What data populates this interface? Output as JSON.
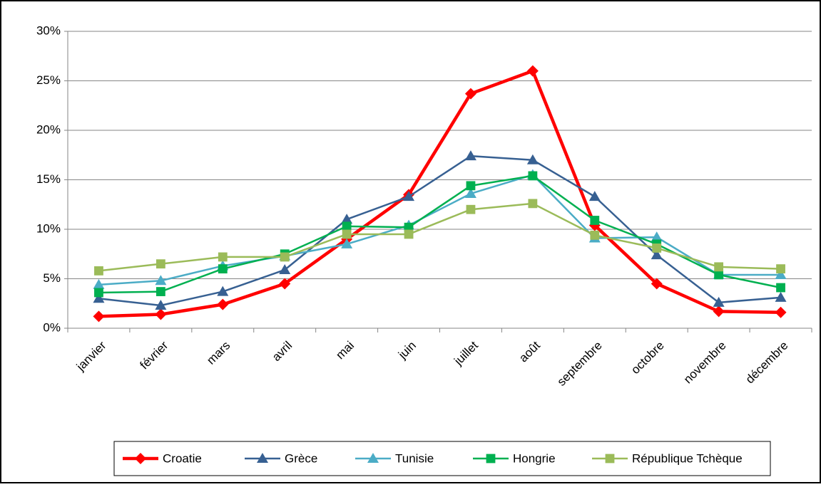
{
  "chart_data": {
    "type": "line",
    "categories": [
      "janvier",
      "février",
      "mars",
      "avril",
      "mai",
      "juin",
      "juillet",
      "août",
      "septembre",
      "octobre",
      "novembre",
      "décembre"
    ],
    "series": [
      {
        "name": "Croatie",
        "color": "#ff0000",
        "marker": "diamond",
        "values": [
          1.2,
          1.4,
          2.4,
          4.5,
          9.0,
          13.5,
          23.7,
          26.0,
          10.4,
          4.5,
          1.7,
          1.6
        ]
      },
      {
        "name": "Grèce",
        "color": "#376092",
        "marker": "triangle",
        "values": [
          3.0,
          2.3,
          3.7,
          5.9,
          11.0,
          13.3,
          17.4,
          17.0,
          13.3,
          7.4,
          2.6,
          3.1
        ]
      },
      {
        "name": "Tunisie",
        "color": "#4bacc6",
        "marker": "triangle",
        "values": [
          4.4,
          4.8,
          6.3,
          7.3,
          8.5,
          10.4,
          13.6,
          15.5,
          9.1,
          9.2,
          5.4,
          5.4
        ]
      },
      {
        "name": "Hongrie",
        "color": "#00b050",
        "marker": "square",
        "values": [
          3.6,
          3.7,
          6.0,
          7.5,
          10.3,
          10.2,
          14.4,
          15.4,
          10.9,
          8.5,
          5.4,
          4.1
        ]
      },
      {
        "name": "République Tchèque",
        "color": "#9bbb59",
        "marker": "square",
        "values": [
          5.8,
          6.5,
          7.2,
          7.2,
          9.5,
          9.5,
          12.0,
          12.6,
          9.4,
          8.1,
          6.2,
          6.0
        ]
      }
    ],
    "ylim": [
      0,
      30
    ],
    "yticks": [
      {
        "value": 0,
        "label": "0%"
      },
      {
        "value": 5,
        "label": "5%"
      },
      {
        "value": 10,
        "label": "10%"
      },
      {
        "value": 15,
        "label": "15%"
      },
      {
        "value": 20,
        "label": "20%"
      },
      {
        "value": 25,
        "label": "25%"
      },
      {
        "value": 30,
        "label": "30%"
      }
    ],
    "grid": true,
    "legend": "bottom"
  }
}
